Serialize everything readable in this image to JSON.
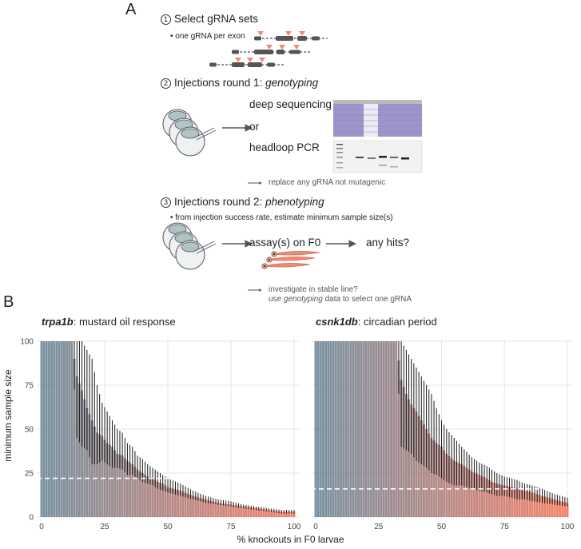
{
  "panel_a": {
    "letter": "A",
    "step1": {
      "num": "1",
      "title": "Select gRNA sets",
      "bullet": "• one gRNA per exon"
    },
    "step2": {
      "num": "2",
      "title_prefix": "Injections round 1: ",
      "title_italic": "genotyping",
      "option1": "deep sequencing",
      "or": "or",
      "option2": "headloop PCR",
      "note": "replace any gRNA not mutagenic"
    },
    "step3": {
      "num": "3",
      "title_prefix": "Injections round 2: ",
      "title_italic": "phenotyping",
      "bullet": "• from injection success rate, estimate minimum sample size(s)",
      "assay": "assay(s) on F0",
      "hits": "any hits?",
      "note_line1": "investigate in stable line?",
      "note_line2_prefix": "use ",
      "note_line2_italic": "genotyping",
      "note_line2_suffix": " data to select one gRNA"
    }
  },
  "panel_b": {
    "letter": "B",
    "left_title_italic": "trpa1b",
    "left_title_rest": ": mustard oil response",
    "right_title_italic": "csnk1db",
    "right_title_rest": ": circadian period",
    "ylabel": "minimum sample size",
    "xlabel": "% knockouts in F0 larvae"
  },
  "colors": {
    "gradient_start": "#5f7d8e",
    "gradient_end": "#f26b50",
    "accent_arrowhead": "#f08a74",
    "embryo": "#b0c4c8",
    "gel_lane": "#9b95c9"
  },
  "chart_data": [
    {
      "type": "bar",
      "title": "trpa1b: mustard oil response",
      "xlabel": "% knockouts in F0 larvae",
      "ylabel": "minimum sample size",
      "xlim": [
        0,
        100
      ],
      "ylim": [
        0,
        100
      ],
      "xticks": [
        0,
        25,
        50,
        75,
        100
      ],
      "yticks": [
        0,
        25,
        50,
        75,
        100
      ],
      "threshold": 22,
      "x": [
        0,
        5,
        10,
        12,
        14,
        16,
        18,
        20,
        22,
        24,
        26,
        28,
        30,
        32,
        34,
        36,
        38,
        40,
        42,
        44,
        46,
        48,
        50,
        55,
        60,
        65,
        70,
        75,
        80,
        85,
        90,
        95,
        100
      ],
      "values": [
        100,
        100,
        100,
        100,
        80,
        72,
        62,
        55,
        48,
        46,
        42,
        40,
        36,
        35,
        32,
        30,
        27,
        25,
        23,
        22,
        20,
        19,
        17,
        15,
        12,
        10,
        8,
        7,
        6,
        5,
        4,
        3,
        3
      ],
      "error_low": [
        100,
        100,
        100,
        100,
        45,
        40,
        38,
        30,
        30,
        32,
        30,
        28,
        28,
        27,
        24,
        24,
        22,
        20,
        19,
        18,
        16,
        15,
        14,
        12,
        10,
        8,
        7,
        6,
        5,
        4,
        3,
        2,
        2
      ],
      "error_high": [
        100,
        100,
        100,
        100,
        100,
        100,
        95,
        90,
        75,
        65,
        60,
        55,
        50,
        48,
        42,
        40,
        35,
        33,
        30,
        28,
        26,
        24,
        22,
        19,
        15,
        12,
        10,
        9,
        7,
        6,
        5,
        4,
        4
      ],
      "grid": true
    },
    {
      "type": "bar",
      "title": "csnk1db: circadian period",
      "xlabel": "% knockouts in F0 larvae",
      "ylabel": "minimum sample size",
      "xlim": [
        0,
        100
      ],
      "ylim": [
        0,
        100
      ],
      "xticks": [
        0,
        25,
        50,
        75,
        100
      ],
      "yticks": [
        0,
        25,
        50,
        75,
        100
      ],
      "threshold": 16,
      "x": [
        0,
        10,
        20,
        25,
        28,
        30,
        32,
        34,
        36,
        38,
        40,
        42,
        44,
        46,
        48,
        50,
        52,
        55,
        58,
        60,
        62,
        65,
        68,
        70,
        72,
        75,
        78,
        80,
        83,
        86,
        90,
        95,
        100
      ],
      "values": [
        100,
        100,
        100,
        100,
        100,
        100,
        100,
        78,
        70,
        64,
        60,
        55,
        50,
        45,
        42,
        40,
        36,
        32,
        30,
        28,
        26,
        24,
        22,
        20,
        19,
        18,
        17,
        16,
        15,
        14,
        12,
        10,
        8
      ],
      "error_low": [
        100,
        100,
        100,
        100,
        100,
        100,
        100,
        40,
        38,
        36,
        32,
        30,
        28,
        25,
        24,
        22,
        20,
        18,
        18,
        17,
        16,
        15,
        14,
        13,
        12,
        12,
        11,
        10,
        10,
        9,
        8,
        7,
        6
      ],
      "error_high": [
        100,
        100,
        100,
        100,
        100,
        100,
        100,
        100,
        95,
        90,
        85,
        80,
        75,
        70,
        62,
        55,
        50,
        45,
        40,
        37,
        34,
        31,
        29,
        27,
        25,
        23,
        22,
        21,
        19,
        18,
        16,
        13,
        11
      ],
      "grid": true
    }
  ]
}
